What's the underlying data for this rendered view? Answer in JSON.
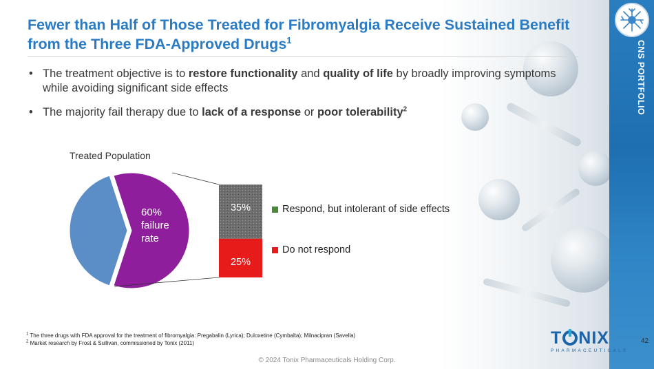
{
  "slide": {
    "title": "Fewer than Half of Those Treated for Fibromyalgia Receive Sustained Benefit from the Three FDA-Approved Drugs",
    "title_sup": "1",
    "side_label": "CNS PORTFOLIO",
    "page_number": "42",
    "copyright": "© 2024 Tonix Pharmaceuticals Holding Corp."
  },
  "bullets": [
    {
      "dot": "•",
      "t1": "The treatment objective is to ",
      "b1": "restore functionality",
      "t2": " and ",
      "b2": "quality of life",
      "t3": " by broadly improving symptoms while avoiding significant side effects"
    },
    {
      "dot": "•",
      "t1": "The majority fail therapy due to ",
      "b1": "lack of a response",
      "t2": " or ",
      "b2": "poor tolerability",
      "sup": "2"
    }
  ],
  "chart_data": {
    "type": "pie",
    "title": "Treated Population",
    "pie": [
      {
        "value": 40,
        "color": "#5b8ec6"
      },
      {
        "value": 60,
        "color": "#8e1e9c",
        "label": "60% failure rate",
        "label_lines": [
          "60%",
          "failure",
          "rate"
        ]
      }
    ],
    "breakdown": {
      "type": "stacked-bar",
      "segments": [
        {
          "name": "Respond, but intolerant of side effects",
          "value": 35,
          "label": "35%",
          "color": "#6e6e6e"
        },
        {
          "name": "Do not respond",
          "value": 25,
          "label": "25%",
          "color": "#e81b1b"
        }
      ]
    },
    "legend": [
      {
        "name": "Respond, but intolerant of side effects",
        "color": "#4a8a3a"
      },
      {
        "name": "Do not respond",
        "color": "#e81b1b"
      }
    ]
  },
  "footnotes": [
    {
      "num": "1",
      "text": "The three drugs with FDA approval for the treatment of fibromyalgia: Pregabalin (Lyrica); Duloxetine (Cymbalta); Milnacipran (Savella)"
    },
    {
      "num": "2",
      "text": "Market research by Frost & Sullivan, commissioned by Tonix (2011)"
    }
  ],
  "logo": {
    "part1": "T",
    "part2": "NIX",
    "sub": "PHARMACEUTICALS"
  },
  "icons": {
    "brain": "neuron-icon",
    "logo_o": "tonix-logo-o-icon"
  }
}
